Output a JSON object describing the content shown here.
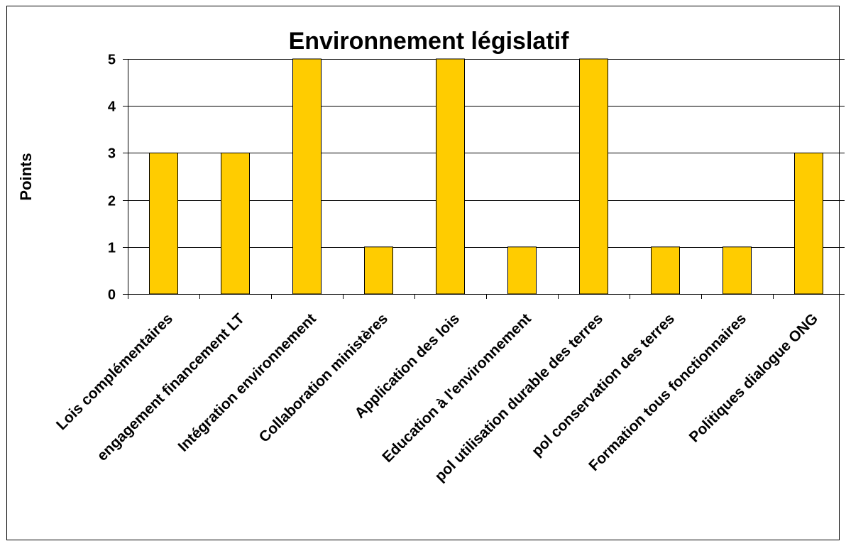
{
  "chart_data": {
    "type": "bar",
    "title": "Environnement législatif",
    "xlabel": "",
    "ylabel": "Points",
    "ylim": [
      0,
      5
    ],
    "yticks": [
      "0",
      "1",
      "2",
      "3",
      "4",
      "5"
    ],
    "grid": true,
    "legend": "none",
    "categories": [
      "Lois complémentaires",
      "engagement financement LT",
      "Intégration environnement",
      "Collaboration ministères",
      "Application des lois",
      "Education à l'environnement",
      "pol utilisation durable des terres",
      "pol conservation des terres",
      "Formation tous fonctionnaires",
      "Politiques dialogue ONG"
    ],
    "values": [
      3,
      3,
      5,
      1,
      5,
      1,
      5,
      1,
      1,
      3
    ],
    "colors": {
      "bar_fill": "#FFCC00",
      "bar_stroke": "#000000",
      "grid": "#000000",
      "border": "#000000"
    }
  }
}
